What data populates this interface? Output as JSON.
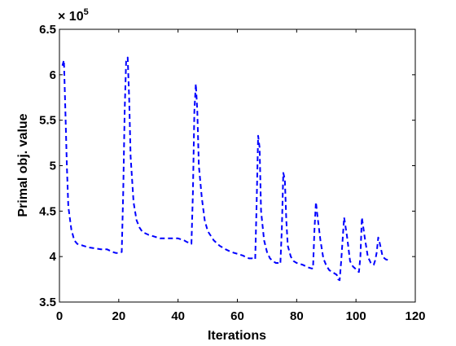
{
  "chart_data": {
    "type": "line",
    "title": "",
    "xlabel": "Iterations",
    "ylabel": "Primal obj. value",
    "xlim": [
      0,
      120
    ],
    "ylim": [
      350000,
      650000
    ],
    "xticks": [
      0,
      20,
      40,
      60,
      80,
      100,
      120
    ],
    "yticks": [
      350000,
      400000,
      450000,
      500000,
      550000,
      600000,
      650000
    ],
    "xtick_labels": [
      "0",
      "20",
      "40",
      "60",
      "80",
      "100",
      "120"
    ],
    "ytick_labels": [
      "3.5",
      "4",
      "4.5",
      "5",
      "5.5",
      "6",
      "6.5"
    ],
    "y_multiplier": {
      "base": "× 10",
      "exponent": "5"
    },
    "grid": false,
    "series": [
      {
        "color": "#0000ff",
        "line_style": "dashed",
        "x": [
          1,
          1.5,
          2,
          2.5,
          3,
          4,
          5,
          6,
          8,
          10,
          12,
          14,
          16,
          18,
          19,
          20,
          21,
          21.5,
          22,
          22.5,
          23,
          23.5,
          24,
          25,
          26,
          27,
          28,
          30,
          32,
          34,
          36,
          38,
          40,
          42,
          43,
          44,
          44.5,
          45,
          45.5,
          46,
          46.5,
          47,
          48,
          49,
          50,
          52,
          54,
          56,
          58,
          60,
          62,
          63,
          64,
          65,
          65.5,
          66,
          66.5,
          67,
          67.5,
          68,
          69,
          70,
          71,
          72,
          73,
          74,
          74.5,
          75,
          75.5,
          76,
          76.5,
          77,
          78,
          79,
          80,
          82,
          84,
          85,
          85.5,
          86,
          86.5,
          87,
          88,
          89,
          90,
          91,
          92,
          93,
          93.5,
          94,
          94.5,
          95,
          96,
          97,
          98,
          99,
          100,
          100.5,
          101,
          101.5,
          102,
          103,
          104,
          105,
          106,
          106.5,
          107,
          107.5,
          108,
          109,
          110,
          111
        ],
        "y": [
          610000,
          616000,
          560000,
          500000,
          455000,
          430000,
          418000,
          414000,
          412000,
          410000,
          409000,
          408000,
          408000,
          405000,
          404000,
          404000,
          405000,
          470000,
          560000,
          615000,
          619000,
          575000,
          510000,
          460000,
          440000,
          432000,
          427000,
          424000,
          422000,
          420000,
          420000,
          420000,
          420000,
          418000,
          416000,
          415000,
          414000,
          470000,
          560000,
          590000,
          560000,
          500000,
          465000,
          440000,
          428000,
          418000,
          412000,
          408000,
          405000,
          403000,
          401000,
          399000,
          398000,
          398000,
          397000,
          397000,
          460000,
          533000,
          520000,
          450000,
          418000,
          405000,
          398000,
          395000,
          393000,
          393000,
          392000,
          430000,
          492000,
          485000,
          440000,
          412000,
          400000,
          395000,
          393000,
          391000,
          388000,
          387000,
          387000,
          430000,
          460000,
          445000,
          418000,
          398000,
          390000,
          385000,
          383000,
          381000,
          380000,
          375000,
          374000,
          395000,
          443000,
          422000,
          395000,
          389000,
          386000,
          384000,
          383000,
          400000,
          443000,
          420000,
          400000,
          393000,
          391000,
          396000,
          405000,
          421000,
          415000,
          400000,
          397000,
          396000
        ]
      }
    ]
  }
}
